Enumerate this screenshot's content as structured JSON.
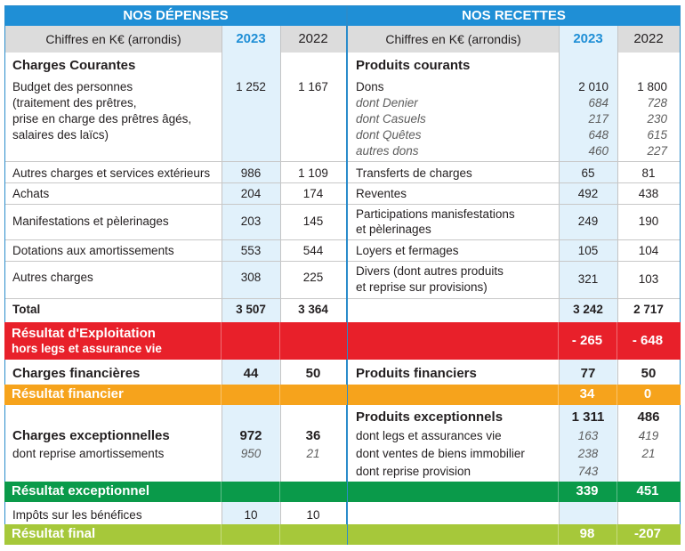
{
  "left": {
    "title": "NOS DÉPENSES",
    "col_header": "Chiffres en K€ (arrondis)",
    "y2023": "2023",
    "y2022": "2022",
    "section": "Charges Courantes",
    "rows": [
      {
        "label": [
          "Budget des personnes",
          "(traitement des prêtres,",
          "prise en charge des prêtres âgés,",
          "salaires des laïcs)"
        ],
        "v2023": "1 252",
        "v2022": "1 167"
      },
      {
        "label": [
          "Autres charges et services extérieurs"
        ],
        "v2023": "986",
        "v2022": "1 109"
      },
      {
        "label": [
          "Achats"
        ],
        "v2023": "204",
        "v2022": "174"
      },
      {
        "label": [
          "Manifestations et pèlerinages"
        ],
        "v2023": "203",
        "v2022": "145"
      },
      {
        "label": [
          "Dotations aux amortissements"
        ],
        "v2023": "553",
        "v2022": "544"
      },
      {
        "label": [
          "Autres charges"
        ],
        "v2023": "308",
        "v2022": "225"
      }
    ],
    "total": {
      "label": "Total",
      "v2023": "3 507",
      "v2022": "3 364"
    },
    "fin": {
      "label": "Charges financières",
      "v2023": "44",
      "v2022": "50"
    },
    "exc": {
      "label": "Charges exceptionnelles",
      "v2023": "972",
      "v2022": "36",
      "sub_label": "dont reprise amortissements",
      "sub2023": "950",
      "sub2022": "21"
    },
    "tax": {
      "label": "Impôts sur les bénéfices",
      "v2023": "10",
      "v2022": "10"
    }
  },
  "right": {
    "title": "NOS RECETTES",
    "col_header": "Chiffres en K€ (arrondis)",
    "y2023": "2023",
    "y2022": "2022",
    "section": "Produits courants",
    "dons": {
      "label": "Dons",
      "v2023": "2 010",
      "v2022": "1 800"
    },
    "dons_sub": [
      {
        "label": "dont Denier",
        "v2023": "684",
        "v2022": "728"
      },
      {
        "label": "dont Casuels",
        "v2023": "217",
        "v2022": "230"
      },
      {
        "label": "dont Quêtes",
        "v2023": "648",
        "v2022": "615"
      },
      {
        "label": "autres dons",
        "v2023": "460",
        "v2022": "227"
      }
    ],
    "rows": [
      {
        "label": [
          "Transferts de charges"
        ],
        "v2023": "65",
        "v2022": "81"
      },
      {
        "label": [
          "Reventes"
        ],
        "v2023": "492",
        "v2022": "438"
      },
      {
        "label": [
          "Participations manisfestations",
          "et pèlerinages"
        ],
        "v2023": "249",
        "v2022": "190"
      },
      {
        "label": [
          "Loyers et fermages"
        ],
        "v2023": "105",
        "v2022": "104"
      },
      {
        "label": [
          "Divers (dont autres produits",
          "et reprise sur provisions)"
        ],
        "v2023": "321",
        "v2022": "103"
      }
    ],
    "total": {
      "v2023": "3 242",
      "v2022": "2 717"
    },
    "fin": {
      "label": "Produits financiers",
      "v2023": "77",
      "v2022": "50"
    },
    "exc": {
      "label": "Produits exceptionnels",
      "v2023": "1 311",
      "v2022": "486"
    },
    "exc_sub": [
      {
        "label": "dont legs et assurances vie",
        "v2023": "163",
        "v2022": "419"
      },
      {
        "label": "dont ventes de biens immobilier",
        "v2023": "238",
        "v2022": "21"
      },
      {
        "label": "dont reprise provision",
        "v2023": "743",
        "v2022": ""
      }
    ]
  },
  "results": {
    "exploitation": {
      "label": "Résultat d'Exploitation",
      "sub": "hors legs et assurance vie",
      "v2023": "- 265",
      "v2022": "- 648"
    },
    "financier": {
      "label": "Résultat financier",
      "v2023": "34",
      "v2022": "0"
    },
    "exceptionnel": {
      "label": "Résultat exceptionnel",
      "v2023": "339",
      "v2022": "451"
    },
    "final": {
      "label": "Résultat final",
      "v2023": "98",
      "v2022": "-207"
    }
  },
  "colors": {
    "blue": "#1f8fd6",
    "red": "#e8202a",
    "orange": "#f6a31c",
    "green": "#0a9a4a",
    "lime": "#a6c83a",
    "highlight": "#e1f1fb"
  }
}
